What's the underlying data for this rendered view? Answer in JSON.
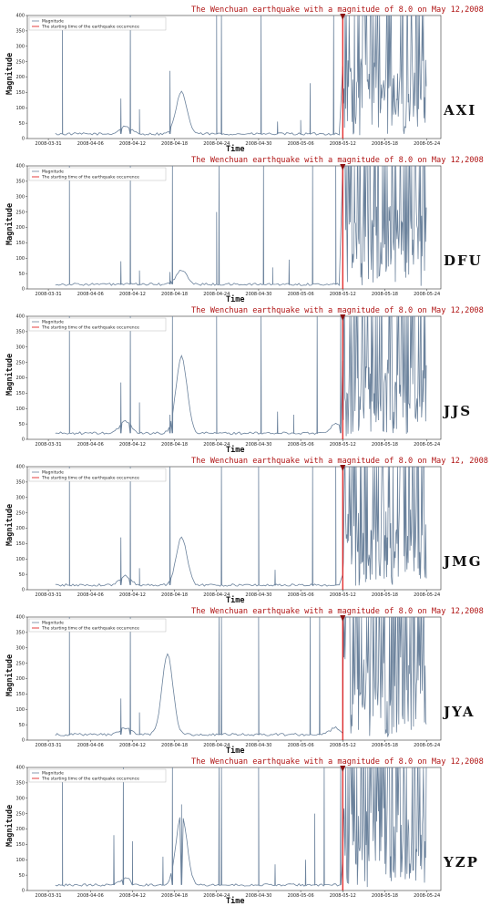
{
  "chart_data": [
    {
      "type": "line",
      "station": "AXI",
      "title": "The Wenchuan earthquake with a magnitude of 8.0 on May 12,2008",
      "ylabel": "Magnitude",
      "xlabel": "Time",
      "ylim": [
        0,
        400
      ],
      "yticks": [
        0,
        50,
        100,
        150,
        200,
        250,
        300,
        350,
        400
      ],
      "xticks": [
        "2008-03-31",
        "2008-04-06",
        "2008-04-12",
        "2008-04-18",
        "2008-04-24",
        "2008-04-30",
        "2008-05-06",
        "2008-05-12",
        "2008-05-18",
        "2008-05-24"
      ],
      "legend": [
        "Magnitude",
        "The starting time of the earthquake occurrence"
      ],
      "eq_time": "2008-05-12",
      "baseline": 15,
      "bumps": [
        [
          "2008-04-11",
          40
        ],
        [
          "2008-04-19",
          150
        ]
      ],
      "spikes": [
        [
          "2008-04-02",
          370
        ],
        [
          "2008-04-10",
          130
        ],
        [
          "2008-04-11",
          400
        ],
        [
          "2008-04-13",
          95
        ],
        [
          "2008-04-17",
          220
        ],
        [
          "2008-04-24",
          400
        ],
        [
          "2008-04-24",
          400
        ],
        [
          "2008-04-30",
          400
        ],
        [
          "2008-05-02",
          55
        ],
        [
          "2008-05-06",
          60
        ],
        [
          "2008-05-07",
          180
        ],
        [
          "2008-05-10",
          400
        ]
      ]
    },
    {
      "type": "line",
      "station": "DFU",
      "title": "The Wenchuan earthquake with a magnitude of 8.0 on May 12,2008",
      "ylabel": "Magnitude",
      "xlabel": "Time",
      "ylim": [
        0,
        400
      ],
      "yticks": [
        0,
        50,
        100,
        150,
        200,
        250,
        300,
        350,
        400
      ],
      "xticks": [
        "2008-03-31",
        "2008-04-06",
        "2008-04-12",
        "2008-04-18",
        "2008-04-24",
        "2008-04-30",
        "2008-05-06",
        "2008-05-12",
        "2008-05-18",
        "2008-05-24"
      ],
      "legend": [
        "Magnitude",
        "The starting time of the earthquake occurrence"
      ],
      "eq_time": "2008-05-12",
      "baseline": 15,
      "bumps": [
        [
          "2008-04-19",
          60
        ]
      ],
      "spikes": [
        [
          "2008-04-03",
          400
        ],
        [
          "2008-04-10",
          90
        ],
        [
          "2008-04-11",
          400
        ],
        [
          "2008-04-13",
          60
        ],
        [
          "2008-04-17",
          55
        ],
        [
          "2008-04-17",
          400
        ],
        [
          "2008-04-24",
          250
        ],
        [
          "2008-04-24",
          400
        ],
        [
          "2008-04-30",
          400
        ],
        [
          "2008-05-02",
          70
        ],
        [
          "2008-05-04",
          95
        ],
        [
          "2008-05-07",
          400
        ],
        [
          "2008-05-11",
          400
        ]
      ]
    },
    {
      "type": "line",
      "station": "JJS",
      "title": "The Wenchuan earthquake with a magnitude of 8.0 on May 12,2008",
      "ylabel": "Magnitude",
      "xlabel": "Time",
      "ylim": [
        0,
        400
      ],
      "yticks": [
        0,
        50,
        100,
        150,
        200,
        250,
        300,
        350,
        400
      ],
      "xticks": [
        "2008-03-31",
        "2008-04-06",
        "2008-04-12",
        "2008-04-18",
        "2008-04-24",
        "2008-04-30",
        "2008-05-06",
        "2008-05-12",
        "2008-05-18",
        "2008-05-24"
      ],
      "legend": [
        "Magnitude",
        "The starting time of the earthquake occurrence"
      ],
      "eq_time": "2008-05-12",
      "baseline": 20,
      "bumps": [
        [
          "2008-04-11",
          60
        ],
        [
          "2008-04-19",
          270
        ],
        [
          "2008-05-11",
          50
        ]
      ],
      "spikes": [
        [
          "2008-04-03",
          400
        ],
        [
          "2008-04-10",
          185
        ],
        [
          "2008-04-11",
          400
        ],
        [
          "2008-04-13",
          120
        ],
        [
          "2008-04-17",
          80
        ],
        [
          "2008-04-17",
          400
        ],
        [
          "2008-04-24",
          400
        ],
        [
          "2008-04-30",
          400
        ],
        [
          "2008-05-02",
          90
        ],
        [
          "2008-05-05",
          80
        ],
        [
          "2008-05-08",
          400
        ],
        [
          "2008-05-11",
          400
        ]
      ]
    },
    {
      "type": "line",
      "station": "JMG",
      "title": "The Wenchuan earthquake with a magnitude of 8.0 on May 12, 2008",
      "ylabel": "Magnitude",
      "xlabel": "Time",
      "ylim": [
        0,
        400
      ],
      "yticks": [
        0,
        50,
        100,
        150,
        200,
        250,
        300,
        350,
        400
      ],
      "xticks": [
        "2008-03-31",
        "2008-04-06",
        "2008-04-12",
        "2008-04-18",
        "2008-04-24",
        "2008-04-30",
        "2008-05-06",
        "2008-05-12",
        "2008-05-18",
        "2008-05-24"
      ],
      "legend": [
        "Magnitude",
        "The starting time of the earthquake occurrence"
      ],
      "eq_time": "2008-05-12",
      "baseline": 15,
      "bumps": [
        [
          "2008-04-11",
          45
        ],
        [
          "2008-04-19",
          170
        ]
      ],
      "spikes": [
        [
          "2008-04-03",
          400
        ],
        [
          "2008-04-10",
          170
        ],
        [
          "2008-04-11",
          400
        ],
        [
          "2008-04-13",
          70
        ],
        [
          "2008-04-17",
          400
        ],
        [
          "2008-04-24",
          400
        ],
        [
          "2008-04-30",
          400
        ],
        [
          "2008-05-02",
          65
        ],
        [
          "2008-05-07",
          400
        ],
        [
          "2008-05-11",
          400
        ]
      ]
    },
    {
      "type": "line",
      "station": "JYA",
      "title": "The Wenchuan earthquake with a magnitude of 8.0 on May 12,2008",
      "ylabel": "Magnitude",
      "xlabel": "Time",
      "ylim": [
        0,
        400
      ],
      "yticks": [
        0,
        50,
        100,
        150,
        200,
        250,
        300,
        350,
        400
      ],
      "xticks": [
        "2008-03-31",
        "2008-04-06",
        "2008-04-12",
        "2008-04-18",
        "2008-04-24",
        "2008-04-30",
        "2008-05-06",
        "2008-05-12",
        "2008-05-18",
        "2008-05-24"
      ],
      "legend": [
        "Magnitude",
        "The starting time of the earthquake occurrence"
      ],
      "eq_time": "2008-05-12",
      "baseline": 18,
      "bumps": [
        [
          "2008-04-11",
          40
        ],
        [
          "2008-04-17",
          280
        ],
        [
          "2008-05-11",
          40
        ]
      ],
      "spikes": [
        [
          "2008-04-03",
          400
        ],
        [
          "2008-04-10",
          135
        ],
        [
          "2008-04-11",
          400
        ],
        [
          "2008-04-13",
          90
        ],
        [
          "2008-04-24",
          400
        ],
        [
          "2008-04-24",
          400
        ],
        [
          "2008-04-30",
          400
        ],
        [
          "2008-05-07",
          400
        ],
        [
          "2008-05-08",
          400
        ]
      ]
    },
    {
      "type": "line",
      "station": "YZP",
      "title": "The Wenchuan earthquake with a magnitude of 8.0 on May 12,2008",
      "ylabel": "Magnitude",
      "xlabel": "Time",
      "ylim": [
        0,
        400
      ],
      "yticks": [
        0,
        50,
        100,
        150,
        200,
        250,
        300,
        350,
        400
      ],
      "xticks": [
        "2008-03-31",
        "2008-04-06",
        "2008-04-12",
        "2008-04-18",
        "2008-04-24",
        "2008-04-30",
        "2008-05-06",
        "2008-05-12",
        "2008-05-18",
        "2008-05-24"
      ],
      "legend": [
        "Magnitude",
        "The starting time of the earthquake occurrence"
      ],
      "eq_time": "2008-05-12",
      "baseline": 18,
      "bumps": [
        [
          "2008-04-19",
          250
        ],
        [
          "2008-04-11",
          40
        ]
      ],
      "spikes": [
        [
          "2008-04-02",
          370
        ],
        [
          "2008-04-09",
          180
        ],
        [
          "2008-04-10",
          400
        ],
        [
          "2008-04-12",
          160
        ],
        [
          "2008-04-16",
          110
        ],
        [
          "2008-04-17",
          400
        ],
        [
          "2008-04-19",
          280
        ],
        [
          "2008-04-24",
          400
        ],
        [
          "2008-04-24",
          400
        ],
        [
          "2008-04-30",
          400
        ],
        [
          "2008-05-02",
          85
        ],
        [
          "2008-05-06",
          100
        ],
        [
          "2008-05-08",
          250
        ],
        [
          "2008-05-09",
          400
        ],
        [
          "2008-05-11",
          400
        ]
      ]
    }
  ]
}
